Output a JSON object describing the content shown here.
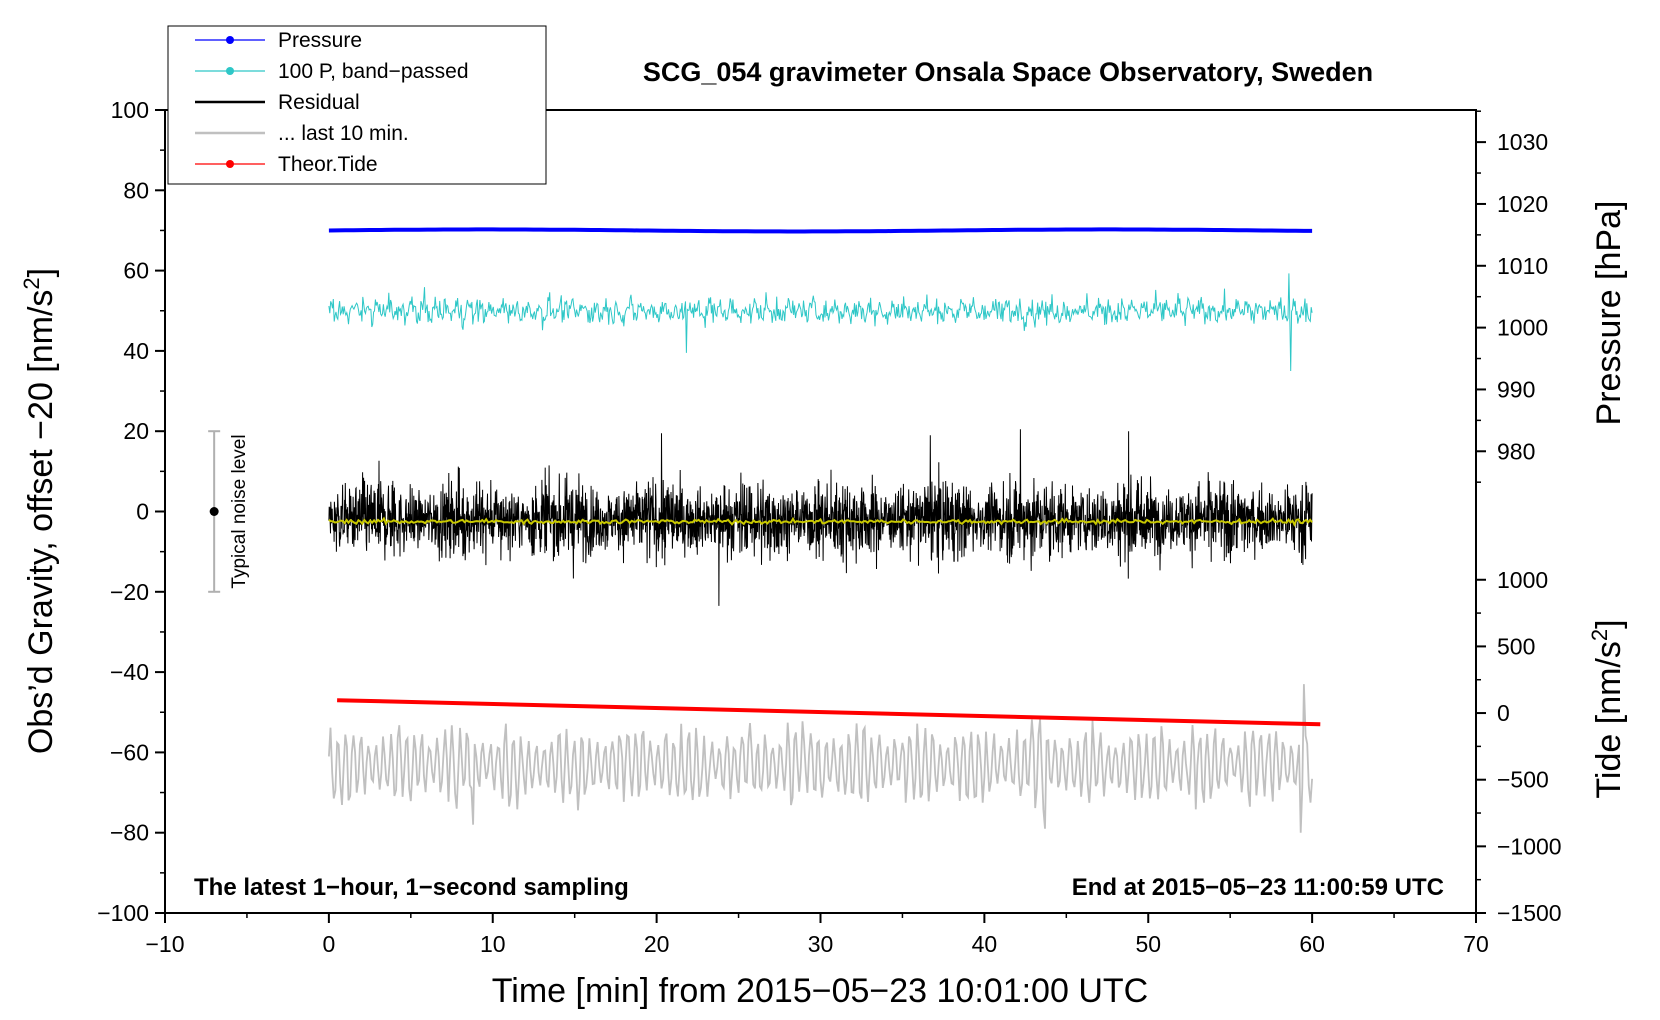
{
  "chart_data": {
    "type": "line",
    "title": "SCG_054 gravimeter Onsala Space Observatory, Sweden",
    "xlabel": "Time [min] from 2015−05−23 10:01:00 UTC",
    "ylabel_left": "Obs’d Gravity, offset −20 [nm/s",
    "ylabel_left_sup": "2",
    "ylabel_left_end": "]",
    "ylabel_right_pressure": "Pressure [hPa]",
    "ylabel_right_tide": "Tide [nm/s",
    "ylabel_right_tide_sup": "2",
    "ylabel_right_tide_end": "]",
    "xlim": [
      -10,
      70
    ],
    "ylim": [
      -100,
      100
    ],
    "xticks": [
      -10,
      0,
      10,
      20,
      30,
      40,
      50,
      60,
      70
    ],
    "xtick_labels": [
      "−10",
      "0",
      "10",
      "20",
      "30",
      "40",
      "50",
      "60",
      "70"
    ],
    "yticks": [
      100,
      80,
      60,
      40,
      20,
      0,
      -20,
      -40,
      -60,
      -80,
      -100
    ],
    "ytick_labels": [
      "100",
      "80",
      "60",
      "40",
      "20",
      "0",
      "−20",
      "−40",
      "−60",
      "−80",
      "−100"
    ],
    "pressure_axis": {
      "ticks": [
        1030,
        1020,
        1010,
        1000,
        990,
        980
      ],
      "tick_labels": [
        "1030",
        "1020",
        "1010",
        "1000",
        "990",
        "980"
      ],
      "map_to_left": [
        [
          980,
          15
        ],
        [
          1030,
          92
        ]
      ]
    },
    "tide_axis": {
      "ticks": [
        1000,
        500,
        0,
        -500,
        -1000,
        -1500
      ],
      "tick_labels": [
        "1000",
        "500",
        "0",
        "−500",
        "−1000",
        "−1500"
      ],
      "map_to_left": [
        [
          1000,
          -17
        ],
        [
          -1500,
          -100
        ]
      ]
    },
    "legend": {
      "location": "top-left",
      "entries": [
        {
          "label": "Pressure",
          "color": "#0000ff",
          "marker": true
        },
        {
          "label": "100 P, band−passed",
          "color": "#2ec7c7",
          "marker": true
        },
        {
          "label": "Residual",
          "color": "#000000",
          "marker": false
        },
        {
          "label": "... last 10 min.",
          "color": "#c0c0c0",
          "marker": false
        },
        {
          "label": "Theor.Tide",
          "color": "#ff0000",
          "marker": true
        }
      ]
    },
    "series": [
      {
        "name": "Pressure",
        "color": "#0000ff",
        "kind": "flat",
        "x_range": [
          0,
          60
        ],
        "value_hpa": 1016,
        "plotted_level": 70
      },
      {
        "name": "100 P, band-passed",
        "color": "#2ec7c7",
        "kind": "noise",
        "x_range": [
          0,
          60
        ],
        "center": 50,
        "amplitude": 3.5,
        "extremes": [
          [
            21.8,
            39.5
          ],
          [
            58.6,
            59.3
          ],
          [
            58.7,
            35
          ]
        ]
      },
      {
        "name": "Residual",
        "color": "#000000",
        "kind": "noise",
        "x_range": [
          0,
          60
        ],
        "center": -2,
        "amplitude": 7.5,
        "extremes": [
          [
            23.8,
            -23.5
          ],
          [
            42.2,
            20.5
          ],
          [
            48.8,
            20
          ],
          [
            36.7,
            19
          ],
          [
            20.3,
            19.5
          ]
        ]
      },
      {
        "name": "Residual smoothed",
        "color": "#c8c800",
        "kind": "smooth",
        "x_range": [
          0,
          60
        ],
        "center": -2.5
      },
      {
        "name": "Theor.Tide",
        "color": "#ff0000",
        "kind": "linear",
        "x": [
          0.5,
          60.5
        ],
        "y": [
          -47,
          -53
        ]
      },
      {
        "name": "... last 10 min.",
        "color": "#c0c0c0",
        "kind": "oscillation",
        "x_range": [
          0,
          60
        ],
        "center": -63,
        "amplitude": 8,
        "extremes": [
          [
            59.5,
            -43
          ],
          [
            59.3,
            -80
          ],
          [
            43.7,
            -79
          ],
          [
            8.8,
            -78
          ]
        ]
      }
    ],
    "error_bar": {
      "label": "Typical noise level",
      "x": -7,
      "center": 0,
      "low": -20,
      "high": 20
    },
    "annotations": {
      "bottom_left": "The latest 1−hour, 1−second sampling",
      "bottom_right": "End at 2015−05−23 11:00:59 UTC"
    }
  }
}
